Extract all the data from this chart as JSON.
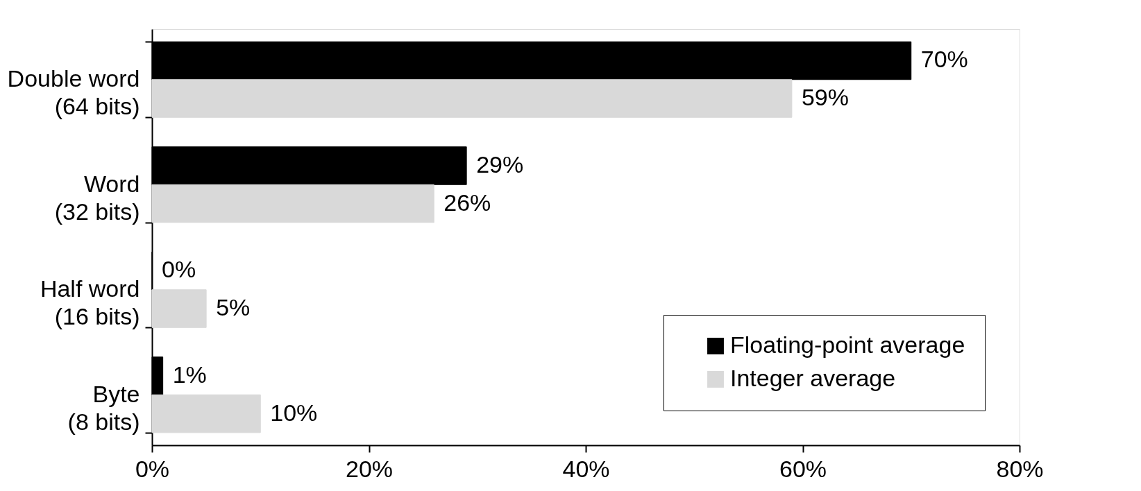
{
  "chart_data": {
    "type": "bar",
    "orientation": "horizontal",
    "categories": [
      "Double word\n(64 bits)",
      "Word\n(32 bits)",
      "Half word\n(16 bits)",
      "Byte\n(8 bits)"
    ],
    "series": [
      {
        "name": "Floating-point average",
        "color": "#000000",
        "values": [
          70,
          29,
          0,
          1
        ],
        "value_labels": [
          "70%",
          "29%",
          "0%",
          "1%"
        ]
      },
      {
        "name": "Integer average",
        "color": "#d9d9d9",
        "values": [
          59,
          26,
          5,
          10
        ],
        "value_labels": [
          "59%",
          "26%",
          "5%",
          "10%"
        ]
      }
    ],
    "xlim": [
      0,
      80
    ],
    "xticks": [
      {
        "value": 0,
        "label": "0%"
      },
      {
        "value": 20,
        "label": "20%"
      },
      {
        "value": 40,
        "label": "40%"
      },
      {
        "value": 60,
        "label": "60%"
      },
      {
        "value": 80,
        "label": "80%"
      }
    ],
    "grid": false,
    "legend": "bottom right"
  }
}
